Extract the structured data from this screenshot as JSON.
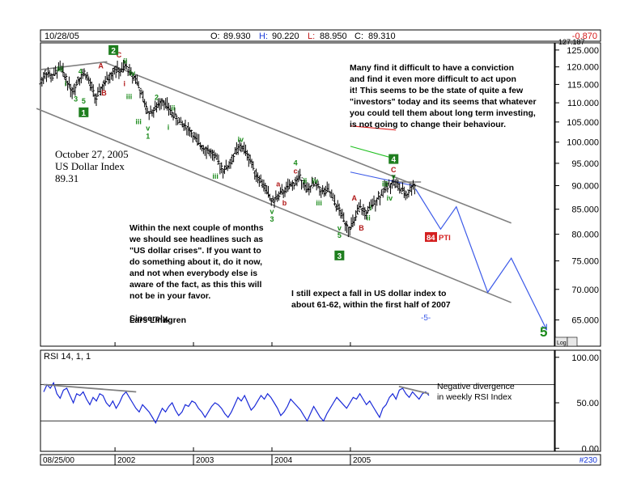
{
  "header": {
    "date": "10/28/05",
    "open_label": "O:",
    "open": "89.930",
    "high_label": "H:",
    "high": "90.220",
    "low_label": "L:",
    "low": "88.950",
    "close_label": "C:",
    "close": "89.310",
    "change": "-0.870",
    "top_right_value": "127.187"
  },
  "title_block": [
    "October 27, 2005",
    "US Dollar Index",
    "89.31"
  ],
  "text_right": [
    "Many find it difficult to have a conviction",
    "and find it even more difficult to act upon",
    "it! This seems to be the state of quite a few",
    "\"investors\" today and its seems that whatever",
    "you could tell them about long term investing,",
    "is not going to change their behaviour."
  ],
  "text_left": [
    "Within the next couple of months",
    "we should see headlines such as",
    "\"US dollar crises\". If you want to",
    "do something about it, do it now,",
    "and not when everybody else is",
    "aware of the fact, as this this will",
    "not be in your favor."
  ],
  "sincerely": "Sincerely,",
  "signature": "Lars Lindgren",
  "forecast_text": [
    "I still expect a fall in US dollar index to",
    "about 61-62, within the first half of 2007"
  ],
  "forecast_wave_label": "-5-",
  "big_five": "5",
  "pti_value": "84",
  "pti_label": "PTI",
  "log_label": "Log",
  "rsi_label": "RSI 14, 1, 1",
  "rsi_note": [
    "Negative divergence",
    "in weekly RSI Index"
  ],
  "footer": {
    "start_date": "08/25/00",
    "bars": "#230"
  },
  "colors": {
    "price": "#000000",
    "channel": "#808080",
    "forecast": "#3c5ae8",
    "wave_red": "#b01818",
    "wave_green": "#1a8a1a",
    "box_green": "#1e7e1e",
    "pti_red": "#d42020"
  },
  "chart_data": {
    "type": "candlestick",
    "instrument": "US Dollar Index",
    "scale": "log",
    "ylim": [
      61,
      127.187
    ],
    "y_ticks": [
      "65.000",
      "70.000",
      "75.000",
      "80.000",
      "85.000",
      "90.000",
      "95.000",
      "100.000",
      "105.000",
      "110.000",
      "115.000",
      "120.000",
      "125.000"
    ],
    "y_tick_values": [
      65,
      70,
      75,
      80,
      85,
      90,
      95,
      100,
      105,
      110,
      115,
      120,
      125
    ],
    "x_ticks": [
      "2002",
      "2003",
      "2004",
      "2005"
    ],
    "x_tick_years": [
      2002,
      2003,
      2004,
      2005
    ],
    "xlim": [
      2001.05,
      2007.6
    ],
    "price_path": [
      [
        2001.05,
        115.5
      ],
      [
        2001.12,
        118.5
      ],
      [
        2001.2,
        117.0
      ],
      [
        2001.3,
        119.8
      ],
      [
        2001.38,
        116.5
      ],
      [
        2001.46,
        113.0
      ],
      [
        2001.53,
        116.5
      ],
      [
        2001.62,
        118.5
      ],
      [
        2001.7,
        114.0
      ],
      [
        2001.76,
        111.0
      ],
      [
        2001.84,
        114.5
      ],
      [
        2001.9,
        116.5
      ],
      [
        2002.0,
        119.5
      ],
      [
        2002.07,
        118.5
      ],
      [
        2002.14,
        120.5
      ],
      [
        2002.2,
        118.0
      ],
      [
        2002.27,
        116.8
      ],
      [
        2002.33,
        112.5
      ],
      [
        2002.42,
        107.5
      ],
      [
        2002.5,
        108.0
      ],
      [
        2002.6,
        111.0
      ],
      [
        2002.68,
        108.5
      ],
      [
        2002.76,
        106.5
      ],
      [
        2002.85,
        104.5
      ],
      [
        2002.95,
        103.0
      ],
      [
        2003.05,
        100.0
      ],
      [
        2003.15,
        98.5
      ],
      [
        2003.25,
        97.0
      ],
      [
        2003.38,
        93.5
      ],
      [
        2003.45,
        94.5
      ],
      [
        2003.55,
        98.0
      ],
      [
        2003.62,
        99.0
      ],
      [
        2003.72,
        96.0
      ],
      [
        2003.8,
        92.5
      ],
      [
        2003.9,
        90.0
      ],
      [
        2004.0,
        86.5
      ],
      [
        2004.1,
        88.0
      ],
      [
        2004.2,
        89.5
      ],
      [
        2004.28,
        90.5
      ],
      [
        2004.36,
        92.0
      ],
      [
        2004.45,
        89.0
      ],
      [
        2004.55,
        90.5
      ],
      [
        2004.65,
        88.5
      ],
      [
        2004.72,
        89.0
      ],
      [
        2004.8,
        86.5
      ],
      [
        2004.9,
        83.5
      ],
      [
        2004.98,
        81.0
      ],
      [
        2005.05,
        82.5
      ],
      [
        2005.12,
        85.5
      ],
      [
        2005.2,
        84.0
      ],
      [
        2005.28,
        86.0
      ],
      [
        2005.36,
        87.5
      ],
      [
        2005.45,
        89.5
      ],
      [
        2005.55,
        91.0
      ],
      [
        2005.65,
        89.0
      ],
      [
        2005.72,
        88.0
      ],
      [
        2005.8,
        90.2
      ],
      [
        2005.83,
        89.31
      ]
    ],
    "channel_upper": [
      [
        2001.85,
        121.5
      ],
      [
        2007.05,
        82.2
      ]
    ],
    "channel_lower": [
      [
        2001.0,
        108.5
      ],
      [
        2007.05,
        67.8
      ]
    ],
    "topline": [
      [
        2001.05,
        119.2
      ],
      [
        2001.9,
        121.5
      ]
    ],
    "resistance_short": [
      [
        2005.58,
        90.8
      ],
      [
        2005.9,
        90.8
      ]
    ],
    "forecast_path": [
      [
        2005.83,
        89.3
      ],
      [
        2006.15,
        81.0
      ],
      [
        2006.35,
        85.5
      ],
      [
        2006.75,
        69.5
      ],
      [
        2007.05,
        75.5
      ],
      [
        2007.5,
        63.5
      ]
    ],
    "projection_lines": [
      {
        "color": "#e02020",
        "points": [
          [
            2005.0,
            104.0
          ],
          [
            2005.58,
            103.0
          ]
        ]
      },
      {
        "color": "#20c020",
        "points": [
          [
            2005.0,
            99.0
          ],
          [
            2005.58,
            96.0
          ]
        ]
      },
      {
        "color": "#3c5ae8",
        "points": [
          [
            2005.0,
            93.0
          ],
          [
            2005.8,
            90.0
          ]
        ]
      }
    ],
    "wave_labels": [
      {
        "t": "C",
        "x": 2002.05,
        "y": 122.8,
        "c": "red"
      },
      {
        "t": "ii",
        "x": 2002.13,
        "y": 121.0,
        "c": "green"
      },
      {
        "t": "A",
        "x": 2001.82,
        "y": 119.6,
        "c": "red"
      },
      {
        "t": "iv",
        "x": 2002.22,
        "y": 117.5,
        "c": "green"
      },
      {
        "t": "i",
        "x": 2002.12,
        "y": 114.5,
        "c": "red"
      },
      {
        "t": "B",
        "x": 2001.86,
        "y": 112.0,
        "c": "red"
      },
      {
        "t": "iii",
        "x": 2002.18,
        "y": 111.0,
        "c": "green"
      },
      {
        "t": "4",
        "x": 2001.56,
        "y": 118.0,
        "c": "green"
      },
      {
        "t": "iii",
        "x": 2001.3,
        "y": 118.6,
        "c": "green"
      },
      {
        "t": "i",
        "x": 2001.37,
        "y": 114.5,
        "c": "green"
      },
      {
        "t": "3",
        "x": 2001.5,
        "y": 110.3,
        "c": "green"
      },
      {
        "t": "5",
        "x": 2001.6,
        "y": 109.8,
        "c": "green"
      },
      {
        "t": "2",
        "x": 2002.53,
        "y": 110.8,
        "c": "green"
      },
      {
        "t": "ii",
        "x": 2002.74,
        "y": 108.0,
        "c": "green"
      },
      {
        "t": "iii",
        "x": 2002.3,
        "y": 104.5,
        "c": "green"
      },
      {
        "t": "v",
        "x": 2002.42,
        "y": 102.8,
        "c": "green"
      },
      {
        "t": "1",
        "x": 2002.42,
        "y": 100.8,
        "c": "green"
      },
      {
        "t": "i",
        "x": 2002.68,
        "y": 103.0,
        "c": "green"
      },
      {
        "t": "iv",
        "x": 2003.6,
        "y": 100.0,
        "c": "green"
      },
      {
        "t": "iii",
        "x": 2003.28,
        "y": 91.5,
        "c": "green"
      },
      {
        "t": "4",
        "x": 2004.3,
        "y": 94.5,
        "c": "green"
      },
      {
        "t": "c",
        "x": 2004.3,
        "y": 92.7,
        "c": "red"
      },
      {
        "t": "a",
        "x": 2004.08,
        "y": 89.8,
        "c": "red"
      },
      {
        "t": "ii",
        "x": 2004.42,
        "y": 90.5,
        "c": "green"
      },
      {
        "t": "iv",
        "x": 2004.55,
        "y": 90.5,
        "c": "green"
      },
      {
        "t": "b",
        "x": 2004.16,
        "y": 85.8,
        "c": "red"
      },
      {
        "t": "iii",
        "x": 2004.6,
        "y": 85.8,
        "c": "green"
      },
      {
        "t": "v",
        "x": 2004.0,
        "y": 84.0,
        "c": "green"
      },
      {
        "t": "3",
        "x": 2004.0,
        "y": 82.5,
        "c": "green"
      },
      {
        "t": "C",
        "x": 2005.55,
        "y": 93.0,
        "c": "red"
      },
      {
        "t": "v",
        "x": 2005.55,
        "y": 91.5,
        "c": "green"
      },
      {
        "t": "iii",
        "x": 2005.44,
        "y": 89.8,
        "c": "green"
      },
      {
        "t": "A",
        "x": 2005.05,
        "y": 86.8,
        "c": "red"
      },
      {
        "t": "iv",
        "x": 2005.5,
        "y": 86.8,
        "c": "green"
      },
      {
        "t": "i",
        "x": 2005.26,
        "y": 84.8,
        "c": "green"
      },
      {
        "t": "ii",
        "x": 2005.23,
        "y": 82.7,
        "c": "green"
      },
      {
        "t": "B",
        "x": 2005.14,
        "y": 80.7,
        "c": "red"
      },
      {
        "t": "v",
        "x": 2004.86,
        "y": 80.7,
        "c": "green"
      },
      {
        "t": "5",
        "x": 2004.86,
        "y": 79.3,
        "c": "green"
      }
    ],
    "wave_boxes": [
      {
        "t": "2",
        "x": 2001.98,
        "y": 125.0
      },
      {
        "t": "1",
        "x": 2001.6,
        "y": 107.5
      },
      {
        "t": "4",
        "x": 2005.55,
        "y": 96.0
      },
      {
        "t": "3",
        "x": 2004.86,
        "y": 76.0
      }
    ],
    "rsi": {
      "ylim": [
        0,
        100
      ],
      "y_ticks": [
        "0.00",
        "50.00",
        "100.00"
      ],
      "y_tick_values": [
        0,
        50,
        100
      ],
      "guide_levels": [
        30,
        70
      ],
      "values": [
        62,
        70,
        66,
        72,
        60,
        55,
        64,
        66,
        58,
        50,
        60,
        58,
        62,
        54,
        48,
        56,
        52,
        60,
        58,
        50,
        46,
        52,
        44,
        50,
        58,
        62,
        56,
        50,
        44,
        40,
        48,
        44,
        40,
        34,
        28,
        36,
        44,
        40,
        46,
        50,
        42,
        36,
        40,
        48,
        46,
        52,
        50,
        44,
        40,
        34,
        40,
        46,
        50,
        48,
        44,
        38,
        34,
        40,
        48,
        56,
        52,
        58,
        50,
        42,
        46,
        52,
        58,
        54,
        60,
        56,
        50,
        44,
        36,
        40,
        46,
        54,
        50,
        46,
        42,
        36,
        30,
        38,
        46,
        40,
        34,
        30,
        38,
        44,
        50,
        56,
        52,
        48,
        44,
        50,
        56,
        54,
        60,
        54,
        48,
        52,
        46,
        40,
        34,
        44,
        48,
        56,
        60,
        54,
        64,
        66,
        60,
        56,
        62,
        58,
        54,
        60,
        62,
        58
      ],
      "divergence_lines": [
        {
          "points": [
            [
              0,
              70
            ],
            [
              0.24,
              62
            ]
          ]
        },
        {
          "points": [
            [
              0.922,
              68
            ],
            [
              1.0,
              60
            ]
          ]
        }
      ]
    }
  }
}
